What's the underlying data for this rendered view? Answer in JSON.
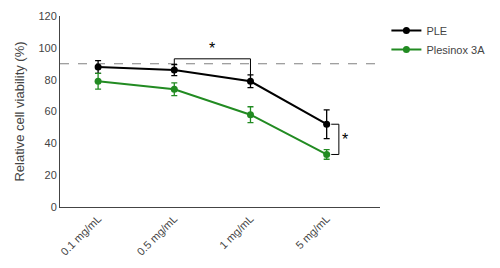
{
  "chart_data": {
    "type": "line",
    "categories": [
      "0.1 mg/mL",
      "0.5 mg/mL",
      "1 mg/mL",
      "5 mg/mL"
    ],
    "series": [
      {
        "name": "PLE",
        "color": "#000000",
        "marker": "circle",
        "values": [
          88,
          86,
          79,
          52
        ],
        "errors": [
          4,
          3.5,
          4,
          9
        ]
      },
      {
        "name": "Plesinox 3A",
        "color": "#228B22",
        "marker": "circle",
        "values": [
          79,
          74,
          58,
          33
        ],
        "errors": [
          5,
          4,
          5,
          3
        ]
      }
    ],
    "ylabel": "Relative cell viability (%)",
    "ylim": [
      0,
      120
    ],
    "yticks": [
      0,
      20,
      40,
      60,
      80,
      100,
      120
    ],
    "hlines": [
      {
        "y": 90,
        "line_style": "dashed"
      }
    ],
    "annotations": [
      {
        "text": "*",
        "between": [
          {
            "series": "PLE",
            "category": "0.5 mg/mL"
          },
          {
            "series": "PLE",
            "category": "1 mg/mL"
          }
        ]
      },
      {
        "text": "*",
        "between": [
          {
            "series": "PLE",
            "category": "5 mg/mL"
          },
          {
            "series": "Plesinox 3A",
            "category": "5 mg/mL"
          }
        ]
      }
    ],
    "grid": false,
    "legend": "right"
  }
}
